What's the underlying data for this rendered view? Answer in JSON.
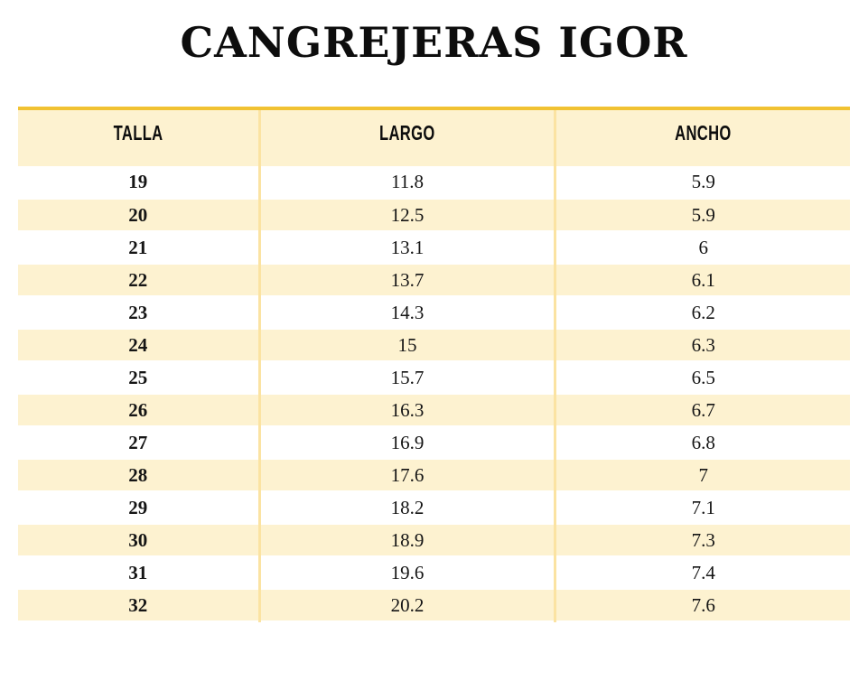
{
  "title": "CANGREJERAS IGOR",
  "colors": {
    "header_bg": "#FDF2D0",
    "stripe_bg": "#FDF2D0",
    "top_border": "#F1C232",
    "divider": "#FBE3A2",
    "bottom_border": "#EFCB5C",
    "text": "#151515"
  },
  "chart_data": {
    "type": "table",
    "title": "CANGREJERAS IGOR",
    "columns": [
      "TALLA",
      "LARGO",
      "ANCHO"
    ],
    "rows": [
      [
        "19",
        "11.8",
        "5.9"
      ],
      [
        "20",
        "12.5",
        "5.9"
      ],
      [
        "21",
        "13.1",
        "6"
      ],
      [
        "22",
        "13.7",
        "6.1"
      ],
      [
        "23",
        "14.3",
        "6.2"
      ],
      [
        "24",
        "15",
        "6.3"
      ],
      [
        "25",
        "15.7",
        "6.5"
      ],
      [
        "26",
        "16.3",
        "6.7"
      ],
      [
        "27",
        "16.9",
        "6.8"
      ],
      [
        "28",
        "17.6",
        "7"
      ],
      [
        "29",
        "18.2",
        "7.1"
      ],
      [
        "30",
        "18.9",
        "7.3"
      ],
      [
        "31",
        "19.6",
        "7.4"
      ],
      [
        "32",
        "20.2",
        "7.6"
      ]
    ],
    "layout_hints": {
      "stripe_pattern": "even data rows cream, odd rows white, first row (19) white",
      "alignment": "all cells centered",
      "talla_column_bold": true
    }
  }
}
